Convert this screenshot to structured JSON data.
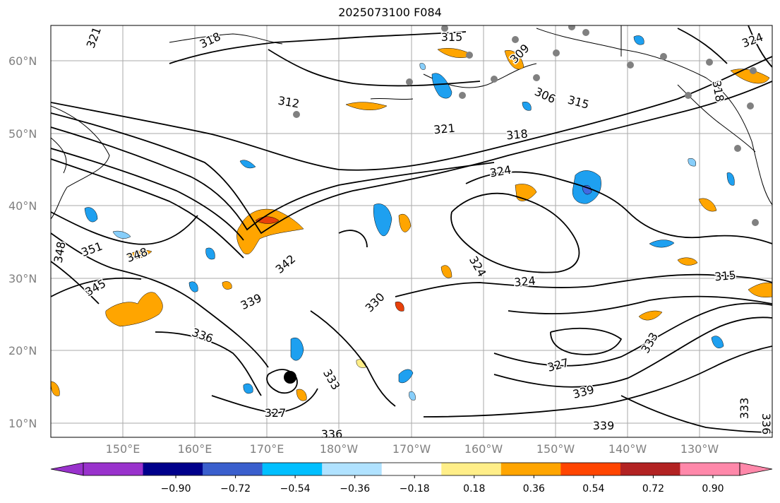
{
  "title": "2025073100 F084",
  "lat_labels": [
    "60°N",
    "50°N",
    "40°N",
    "30°N",
    "20°N",
    "10°N"
  ],
  "lon_labels": [
    "150°E",
    "160°E",
    "170°E",
    "180°W",
    "170°W",
    "160°W",
    "150°W",
    "140°W",
    "130°W"
  ],
  "contour_labels": [
    "321",
    "318",
    "315",
    "324",
    "309",
    "318",
    "312",
    "306",
    "315",
    "321",
    "318",
    "324",
    "348",
    "351",
    "348",
    "345",
    "339",
    "336",
    "342",
    "330",
    "324",
    "324",
    "315",
    "333",
    "339",
    "327",
    "339",
    "333",
    "336",
    "327",
    "333",
    "336"
  ],
  "colorbar": {
    "ticks": [
      "−0.90",
      "−0.72",
      "−0.54",
      "−0.36",
      "−0.18",
      "0.18",
      "0.36",
      "0.54",
      "0.72",
      "0.90"
    ],
    "colors": [
      "#9932cc",
      "#00008b",
      "#3a5fcd",
      "#00bfff",
      "#b0e2ff",
      "#ffffff",
      "#ffee88",
      "#ffa500",
      "#ff4500",
      "#b22222",
      "#ff88aa"
    ]
  },
  "colors": {
    "orange": "#ffa500",
    "red": "#e8400a",
    "light_blue": "#87cefa",
    "deep_sky_blue": "#1ea0f0",
    "royal_blue": "#4169e1",
    "yellow": "#ffee88",
    "contour": "#000000",
    "station": "#808080"
  }
}
